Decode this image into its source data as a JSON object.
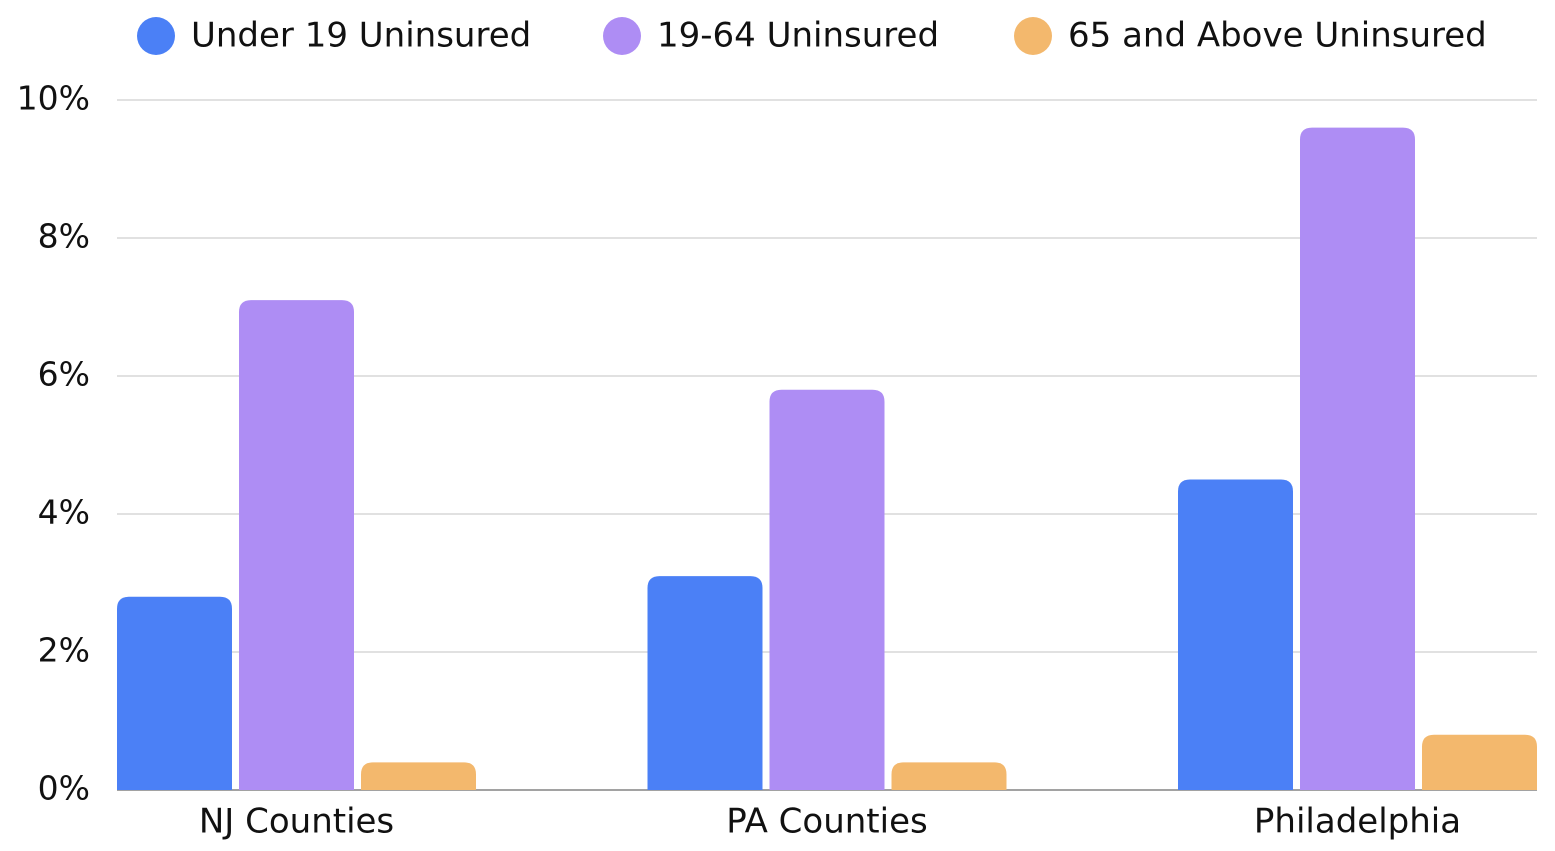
{
  "chart_data": {
    "type": "bar",
    "categories": [
      "NJ Counties",
      "PA Counties",
      "Philadelphia"
    ],
    "series": [
      {
        "name": "Under 19 Uninsured",
        "color": "#4b80f6",
        "values": [
          2.8,
          3.1,
          4.5
        ]
      },
      {
        "name": "19-64 Uninsured",
        "color": "#ae8df4",
        "values": [
          7.1,
          5.8,
          9.6
        ]
      },
      {
        "name": "65 and Above Uninsured",
        "color": "#f3b86d",
        "values": [
          0.4,
          0.4,
          0.8
        ]
      }
    ],
    "ylim": [
      0,
      10
    ],
    "yticks": [
      {
        "value": 0,
        "label": "0%"
      },
      {
        "value": 2,
        "label": "2%"
      },
      {
        "value": 4,
        "label": "4%"
      },
      {
        "value": 6,
        "label": "6%"
      },
      {
        "value": 8,
        "label": "8%"
      },
      {
        "value": 10,
        "label": "10%"
      }
    ],
    "grid": true,
    "legend": "top"
  }
}
